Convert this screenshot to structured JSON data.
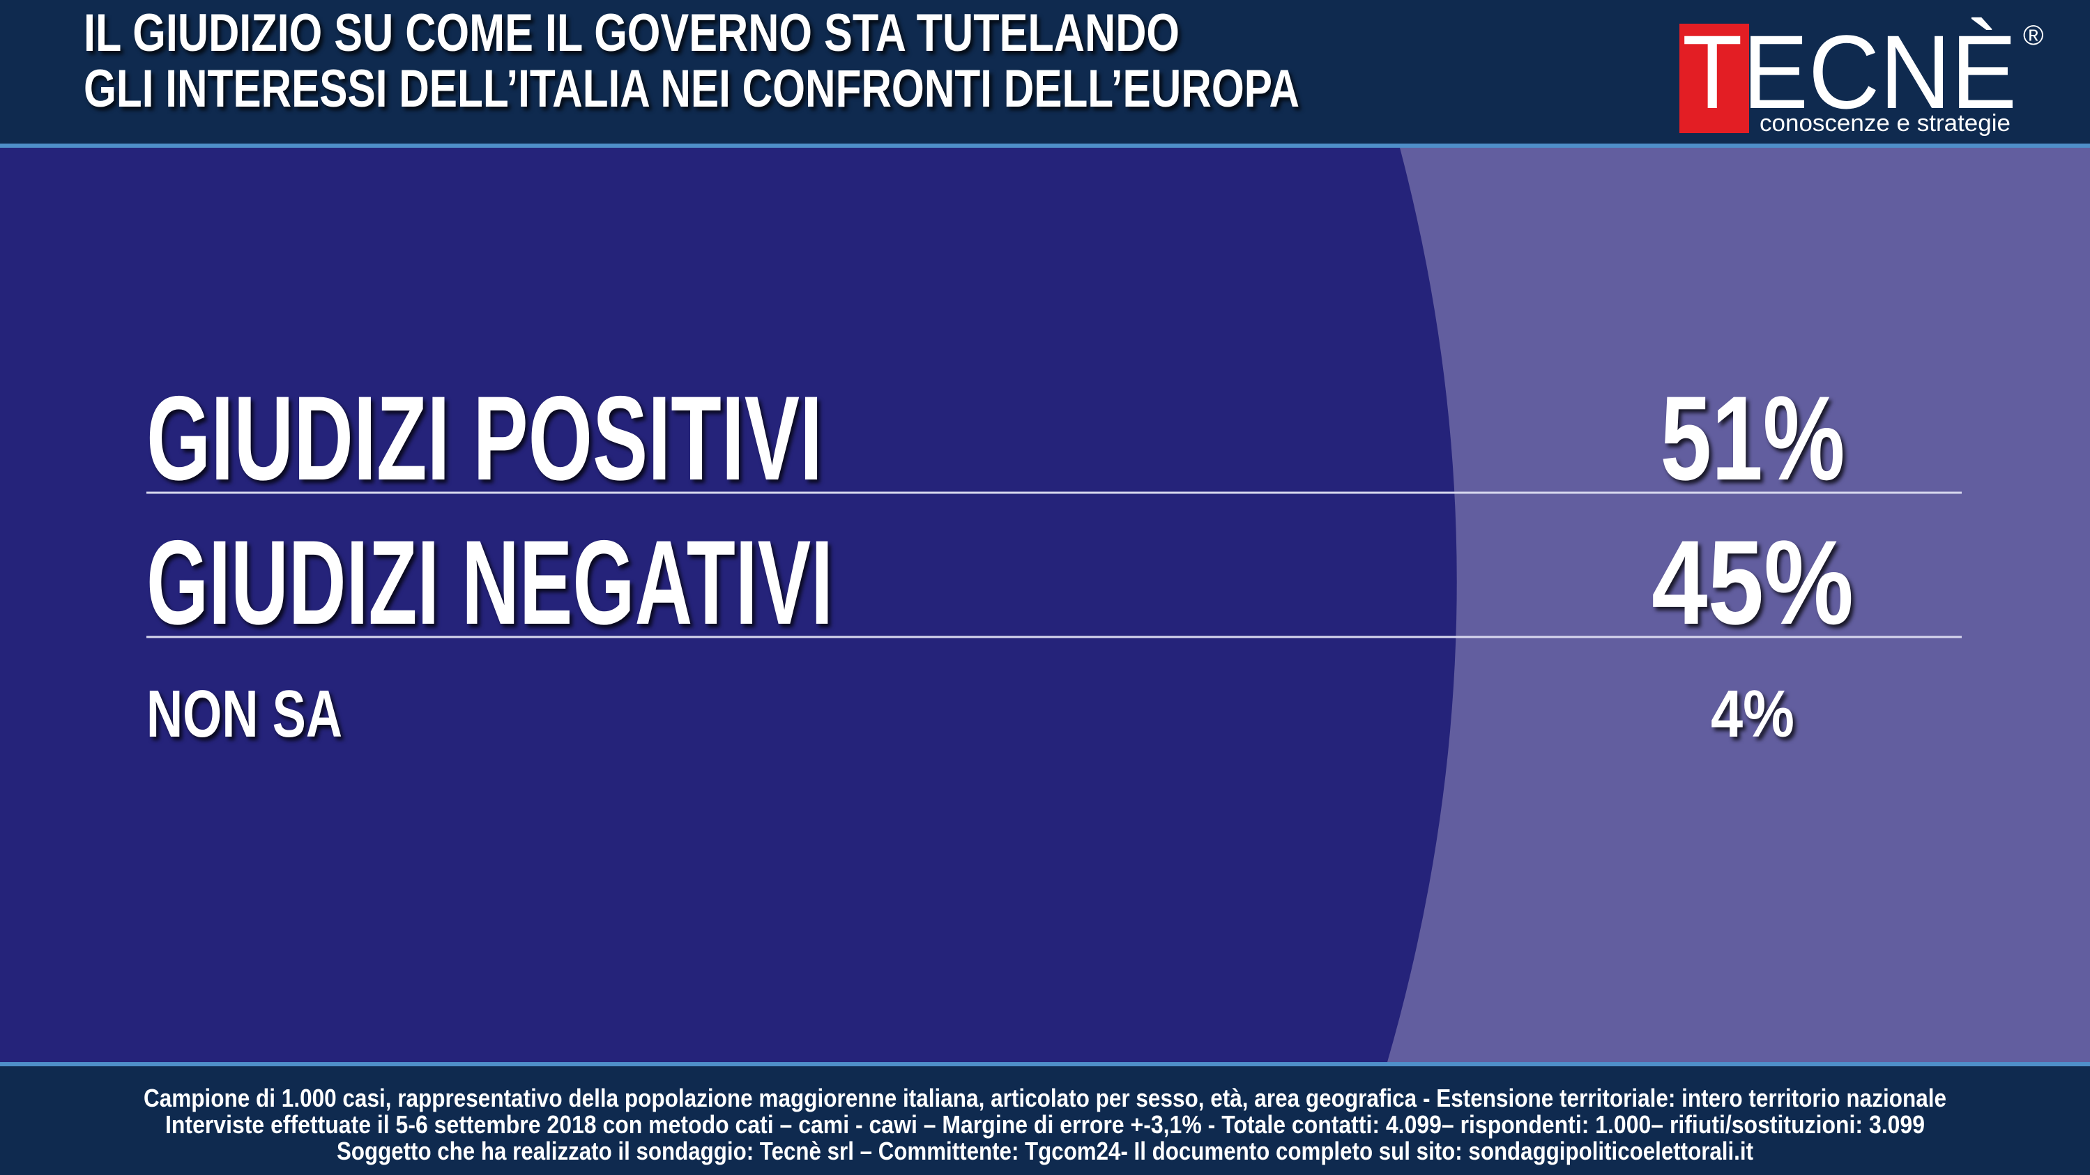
{
  "header": {
    "title_lines": [
      "IL GIUDIZIO SU COME IL GOVERNO STA TUTELANDO",
      "GLI INTERESSI DELL’ITALIA NEI CONFRONTI DELL’EUROPA"
    ],
    "logo": {
      "name": "TECNÈ",
      "mark": "®",
      "tagline": "conoscenze e strategie"
    }
  },
  "results": {
    "rows": [
      {
        "label": "GIUDIZI POSITIVI",
        "value": "51%"
      },
      {
        "label": "GIUDIZI NEGATIVI",
        "value": "45%"
      },
      {
        "label": "NON SA",
        "value": "4%"
      }
    ]
  },
  "footer": {
    "lines": [
      "Campione di  1.000 casi, rappresentativo della popolazione maggiorenne italiana, articolato per sesso, età, area geografica - Estensione territoriale: intero territorio nazionale",
      "Interviste effettuate il 5-6 settembre 2018 con metodo cati – cami - cawi – Margine di errore +-3,1%  - Totale contatti: 4.099– rispondenti: 1.000– rifiuti/sostituzioni: 3.099",
      "Soggetto che ha realizzato il sondaggio: Tecnè srl – Committente: Tgcom24- Il documento completo sul sito: sondaggipoliticoelettorali.it"
    ]
  }
}
